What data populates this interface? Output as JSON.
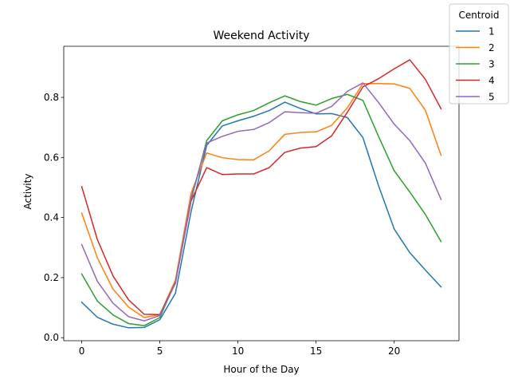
{
  "chart_data": {
    "type": "line",
    "title": "Weekend Activity",
    "xlabel": "Hour of the Day",
    "ylabel": "Activity",
    "xlim": [
      -1.15,
      24.15
    ],
    "ylim": [
      -0.01,
      0.97
    ],
    "xticks": [
      0,
      5,
      10,
      15,
      20
    ],
    "yticks": [
      0.0,
      0.2,
      0.4,
      0.6,
      0.8
    ],
    "ytick_labels": [
      "0.0",
      "0.2",
      "0.4",
      "0.6",
      "0.8"
    ],
    "grid": false,
    "legend": {
      "title": "Centroid",
      "placement": "top-right, outside plot"
    },
    "x": [
      0,
      1,
      2,
      3,
      4,
      5,
      6,
      7,
      8,
      9,
      10,
      11,
      12,
      13,
      14,
      15,
      16,
      17,
      18,
      19,
      20,
      21,
      22,
      23
    ],
    "series": [
      {
        "name": "1",
        "color": "#1f77b4",
        "values": [
          0.118,
          0.068,
          0.045,
          0.033,
          0.034,
          0.06,
          0.148,
          0.42,
          0.64,
          0.705,
          0.722,
          0.737,
          0.756,
          0.784,
          0.763,
          0.745,
          0.746,
          0.733,
          0.666,
          0.506,
          0.362,
          0.283,
          0.225,
          0.169
        ]
      },
      {
        "name": "2",
        "color": "#ff7f0e",
        "values": [
          0.415,
          0.266,
          0.162,
          0.102,
          0.067,
          0.077,
          0.192,
          0.481,
          0.615,
          0.599,
          0.593,
          0.592,
          0.622,
          0.677,
          0.683,
          0.685,
          0.707,
          0.765,
          0.846,
          0.846,
          0.845,
          0.83,
          0.757,
          0.607
        ]
      },
      {
        "name": "3",
        "color": "#2ca02c",
        "values": [
          0.212,
          0.122,
          0.076,
          0.047,
          0.04,
          0.067,
          0.185,
          0.458,
          0.656,
          0.722,
          0.742,
          0.756,
          0.782,
          0.805,
          0.786,
          0.774,
          0.796,
          0.81,
          0.79,
          0.67,
          0.556,
          0.485,
          0.41,
          0.32
        ]
      },
      {
        "name": "4",
        "color": "#d62728",
        "values": [
          0.503,
          0.327,
          0.206,
          0.126,
          0.078,
          0.077,
          0.183,
          0.455,
          0.566,
          0.543,
          0.545,
          0.545,
          0.566,
          0.617,
          0.631,
          0.636,
          0.672,
          0.75,
          0.835,
          0.862,
          0.895,
          0.925,
          0.86,
          0.762
        ]
      },
      {
        "name": "5",
        "color": "#9467bd",
        "values": [
          0.31,
          0.188,
          0.115,
          0.07,
          0.056,
          0.074,
          0.181,
          0.465,
          0.648,
          0.67,
          0.687,
          0.693,
          0.716,
          0.752,
          0.749,
          0.747,
          0.77,
          0.82,
          0.848,
          0.783,
          0.711,
          0.656,
          0.581,
          0.46
        ]
      }
    ]
  }
}
